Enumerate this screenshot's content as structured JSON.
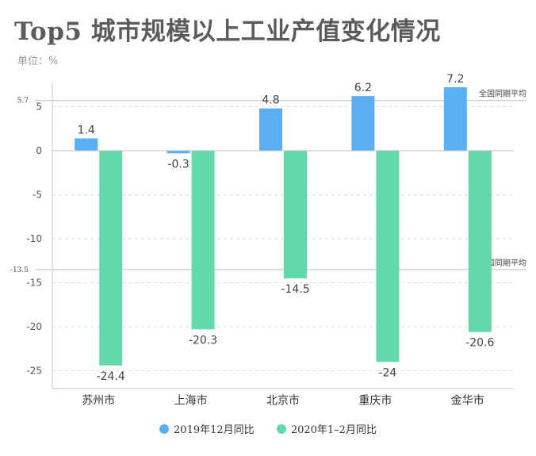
{
  "title": "Top5 城市规模以上工业产值变化情况",
  "unit_label": "单位：%",
  "colors": {
    "series1": "#5aaef2",
    "series2": "#62d9ab",
    "axis": "#cccccc",
    "grid": "#d9d9d9"
  },
  "chart_data": {
    "type": "bar",
    "categories": [
      "苏州市",
      "上海市",
      "北京市",
      "重庆市",
      "金华市"
    ],
    "series": [
      {
        "name": "2019年12月同比",
        "values": [
          1.4,
          -0.3,
          4.8,
          6.2,
          7.2
        ]
      },
      {
        "name": "2020年1–2月同比",
        "values": [
          -24.4,
          -20.3,
          -14.5,
          -24,
          -20.6
        ]
      }
    ],
    "data_labels": [
      [
        "1.4",
        "-0.3",
        "4.8",
        "6.2",
        "7.2"
      ],
      [
        "-24.4",
        "-20.3",
        "-14.5",
        "-24",
        "-20.6"
      ]
    ],
    "ylim": [
      -27,
      8
    ],
    "yticks": [
      5,
      0,
      -5,
      -10,
      -15,
      -20,
      -25
    ],
    "reference_lines": [
      {
        "value": 5.7,
        "label": "全国同期平均",
        "tick_label": "5.7"
      },
      {
        "value": -13.5,
        "label": "全国同期平均",
        "tick_label": "-13.5"
      }
    ],
    "grid": true,
    "legend_position": "bottom-center",
    "xlabel": "",
    "ylabel": ""
  }
}
